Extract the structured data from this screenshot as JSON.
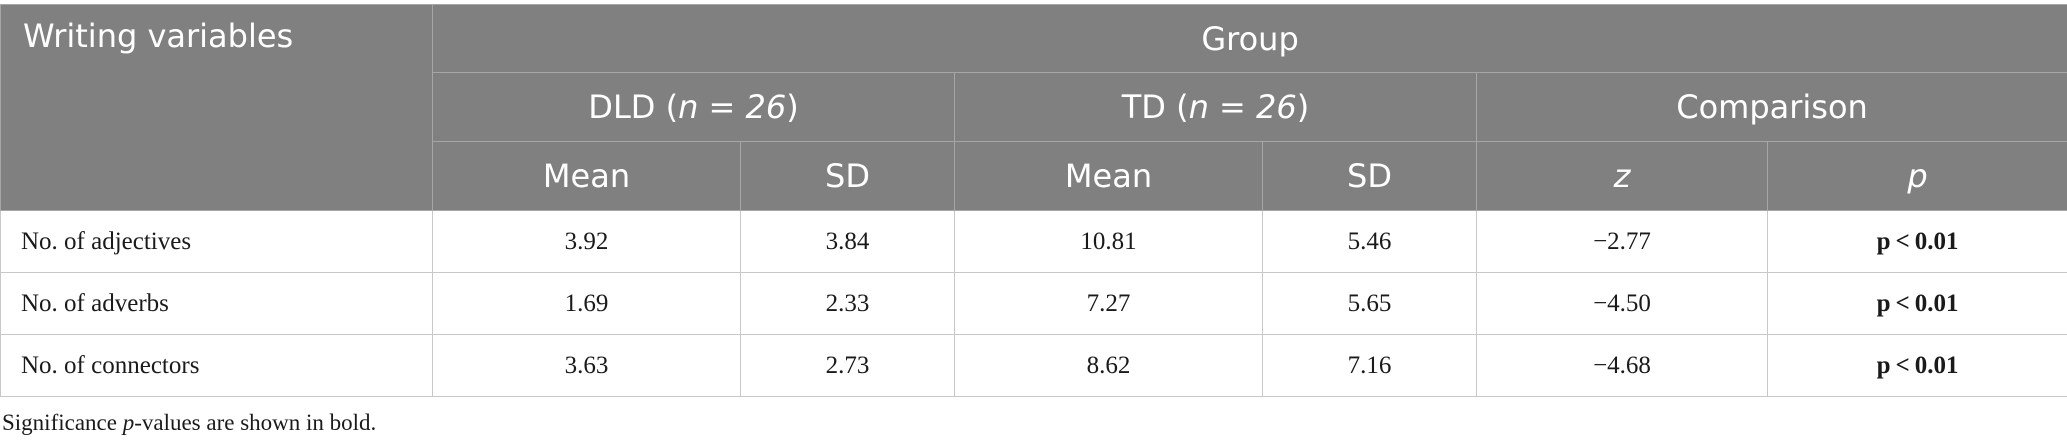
{
  "table": {
    "header": {
      "row_label_heading": "Writing variables",
      "group_heading": "Group",
      "dld_prefix": "DLD (",
      "dld_n": "n = 26",
      "dld_suffix": ")",
      "td_prefix": "TD (",
      "td_n": "n = 26",
      "td_suffix": ")",
      "comparison_heading": "Comparison",
      "sub_headings": [
        "Mean",
        "SD",
        "Mean",
        "SD",
        "z",
        "p"
      ]
    },
    "rows": [
      {
        "label": "No. of adjectives",
        "cells": [
          "3.92",
          "3.84",
          "10.81",
          "5.46",
          "−2.77",
          "p < 0.01"
        ]
      },
      {
        "label": "No. of adverbs",
        "cells": [
          "1.69",
          "2.33",
          "7.27",
          "5.65",
          "−4.50",
          "p < 0.01"
        ]
      },
      {
        "label": "No. of connectors",
        "cells": [
          "3.63",
          "2.73",
          "8.62",
          "7.16",
          "−4.68",
          "p < 0.01"
        ]
      }
    ]
  },
  "footnote": {
    "before": "Significance ",
    "italic": "p",
    "after": "-values are shown in bold."
  }
}
